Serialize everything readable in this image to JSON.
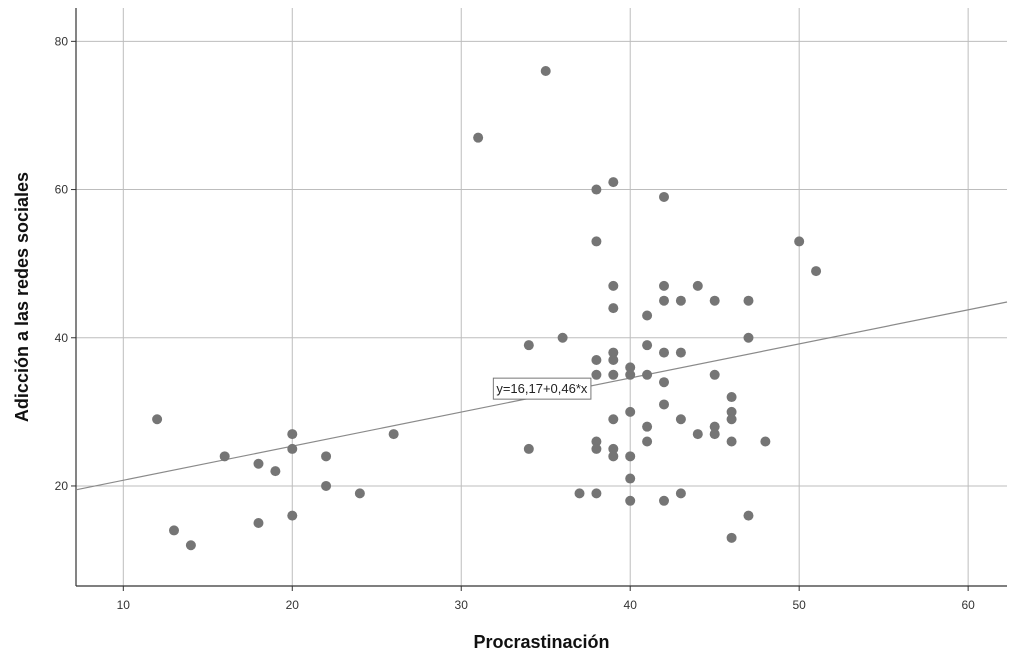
{
  "chart_data": {
    "type": "scatter",
    "xlabel": "Procrastinación",
    "ylabel": "Adicción a las redes sociales",
    "xlim": [
      7.2,
      62.3
    ],
    "ylim": [
      6.5,
      84.5
    ],
    "x_ticks": [
      10,
      20,
      30,
      40,
      50,
      60
    ],
    "y_ticks": [
      20,
      40,
      60,
      80
    ],
    "grid": true,
    "colors": {
      "points": "#757575",
      "grid": "#bdbdbd",
      "axis": "#333333",
      "fit_line": "#8a8a8a"
    },
    "fit_line": {
      "intercept": 16.17,
      "slope": 0.46,
      "label": "y=16,17+0,46*x"
    },
    "points": [
      {
        "x": 12,
        "y": 29
      },
      {
        "x": 13,
        "y": 14
      },
      {
        "x": 14,
        "y": 12
      },
      {
        "x": 16,
        "y": 24
      },
      {
        "x": 18,
        "y": 23
      },
      {
        "x": 18,
        "y": 15
      },
      {
        "x": 19,
        "y": 22
      },
      {
        "x": 20,
        "y": 27
      },
      {
        "x": 20,
        "y": 25
      },
      {
        "x": 20,
        "y": 16
      },
      {
        "x": 22,
        "y": 24
      },
      {
        "x": 22,
        "y": 20
      },
      {
        "x": 24,
        "y": 19
      },
      {
        "x": 26,
        "y": 27
      },
      {
        "x": 31,
        "y": 67
      },
      {
        "x": 34,
        "y": 39
      },
      {
        "x": 34,
        "y": 25
      },
      {
        "x": 35,
        "y": 76
      },
      {
        "x": 36,
        "y": 40
      },
      {
        "x": 37,
        "y": 19
      },
      {
        "x": 38,
        "y": 60
      },
      {
        "x": 38,
        "y": 53
      },
      {
        "x": 38,
        "y": 37
      },
      {
        "x": 38,
        "y": 35
      },
      {
        "x": 38,
        "y": 26
      },
      {
        "x": 38,
        "y": 25
      },
      {
        "x": 38,
        "y": 19
      },
      {
        "x": 39,
        "y": 61
      },
      {
        "x": 39,
        "y": 47
      },
      {
        "x": 39,
        "y": 44
      },
      {
        "x": 39,
        "y": 38
      },
      {
        "x": 39,
        "y": 37
      },
      {
        "x": 39,
        "y": 35
      },
      {
        "x": 39,
        "y": 29
      },
      {
        "x": 39,
        "y": 25
      },
      {
        "x": 39,
        "y": 24
      },
      {
        "x": 40,
        "y": 36
      },
      {
        "x": 40,
        "y": 35
      },
      {
        "x": 40,
        "y": 30
      },
      {
        "x": 40,
        "y": 24
      },
      {
        "x": 40,
        "y": 21
      },
      {
        "x": 40,
        "y": 18
      },
      {
        "x": 41,
        "y": 43
      },
      {
        "x": 41,
        "y": 39
      },
      {
        "x": 41,
        "y": 35
      },
      {
        "x": 41,
        "y": 28
      },
      {
        "x": 41,
        "y": 26
      },
      {
        "x": 42,
        "y": 59
      },
      {
        "x": 42,
        "y": 47
      },
      {
        "x": 42,
        "y": 45
      },
      {
        "x": 42,
        "y": 38
      },
      {
        "x": 42,
        "y": 34
      },
      {
        "x": 42,
        "y": 31
      },
      {
        "x": 42,
        "y": 18
      },
      {
        "x": 43,
        "y": 45
      },
      {
        "x": 43,
        "y": 38
      },
      {
        "x": 43,
        "y": 29
      },
      {
        "x": 43,
        "y": 19
      },
      {
        "x": 44,
        "y": 47
      },
      {
        "x": 44,
        "y": 27
      },
      {
        "x": 45,
        "y": 45
      },
      {
        "x": 45,
        "y": 35
      },
      {
        "x": 45,
        "y": 28
      },
      {
        "x": 45,
        "y": 27
      },
      {
        "x": 46,
        "y": 32
      },
      {
        "x": 46,
        "y": 30
      },
      {
        "x": 46,
        "y": 29
      },
      {
        "x": 46,
        "y": 26
      },
      {
        "x": 46,
        "y": 13
      },
      {
        "x": 47,
        "y": 45
      },
      {
        "x": 47,
        "y": 40
      },
      {
        "x": 47,
        "y": 16
      },
      {
        "x": 48,
        "y": 26
      },
      {
        "x": 50,
        "y": 53
      },
      {
        "x": 51,
        "y": 49
      }
    ]
  }
}
